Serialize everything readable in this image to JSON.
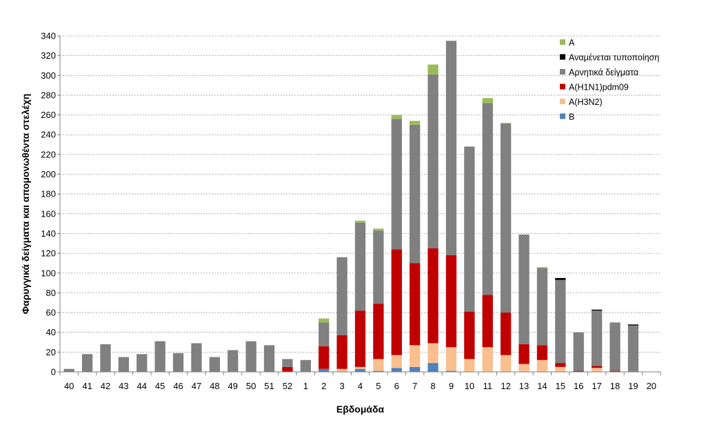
{
  "chart_data": {
    "type": "bar",
    "stacked": true,
    "xlabel": "Εβδομάδα",
    "ylabel": "Φαρυγγικά δείγματα και απομονωθέντα στελέχη",
    "ylim": [
      0,
      340
    ],
    "ytick_step": 20,
    "grid": true,
    "legend_position": "top-right",
    "categories": [
      "40",
      "41",
      "42",
      "43",
      "44",
      "45",
      "46",
      "47",
      "48",
      "49",
      "50",
      "51",
      "52",
      "1",
      "2",
      "3",
      "4",
      "5",
      "6",
      "7",
      "8",
      "9",
      "10",
      "11",
      "12",
      "13",
      "14",
      "15",
      "16",
      "17",
      "18",
      "19",
      "20"
    ],
    "series": [
      {
        "name": "B",
        "color": "#4f81bd",
        "values": [
          0,
          0,
          0,
          0,
          0,
          0,
          0,
          0,
          0,
          0,
          0,
          0,
          0,
          0,
          3,
          0,
          3,
          1,
          4,
          5,
          9,
          1,
          0,
          0,
          0,
          0,
          0,
          0,
          0,
          0,
          0,
          0,
          0
        ]
      },
      {
        "name": "A(H3N2)",
        "color": "#fabf8f",
        "values": [
          0,
          0,
          0,
          0,
          0,
          0,
          0,
          0,
          0,
          0,
          0,
          0,
          0,
          0,
          0,
          3,
          2,
          12,
          13,
          22,
          20,
          24,
          13,
          25,
          17,
          8,
          12,
          5,
          0,
          4,
          0,
          0,
          0
        ]
      },
      {
        "name": "A(H1N1)pdm09",
        "color": "#c00000",
        "values": [
          0,
          0,
          0,
          0,
          0,
          0,
          0,
          0,
          0,
          0,
          0,
          0,
          5,
          0,
          23,
          34,
          57,
          56,
          107,
          83,
          96,
          93,
          48,
          53,
          43,
          20,
          15,
          4,
          1,
          2,
          1,
          0,
          0
        ]
      },
      {
        "name": "Αρνητικά δείγματα",
        "color": "#808080",
        "values": [
          3,
          18,
          28,
          15,
          18,
          31,
          19,
          29,
          15,
          22,
          31,
          27,
          8,
          12,
          24,
          79,
          89,
          74,
          132,
          140,
          176,
          217,
          167,
          194,
          191,
          111,
          78,
          84,
          39,
          56,
          49,
          47,
          0
        ]
      },
      {
        "name": "Αναμένεται τυποποίηση",
        "color": "#000000",
        "values": [
          0,
          0,
          0,
          0,
          0,
          0,
          0,
          0,
          0,
          0,
          0,
          0,
          0,
          0,
          0,
          0,
          0,
          0,
          0,
          0,
          0,
          0,
          0,
          0,
          0,
          0,
          0,
          2,
          0,
          1,
          0,
          1,
          0
        ]
      },
      {
        "name": "A",
        "color": "#9bbb59",
        "values": [
          0,
          0,
          0,
          0,
          0,
          0,
          0,
          0,
          0,
          0,
          0,
          0,
          0,
          0,
          4,
          0,
          2,
          2,
          4,
          4,
          10,
          0,
          0,
          5,
          1,
          0,
          1,
          0,
          0,
          0,
          0,
          0,
          0
        ]
      }
    ],
    "legend_order": [
      "A",
      "Αναμένεται τυποποίηση",
      "Αρνητικά δείγματα",
      "A(H1N1)pdm09",
      "A(H3N2)",
      "B"
    ]
  }
}
